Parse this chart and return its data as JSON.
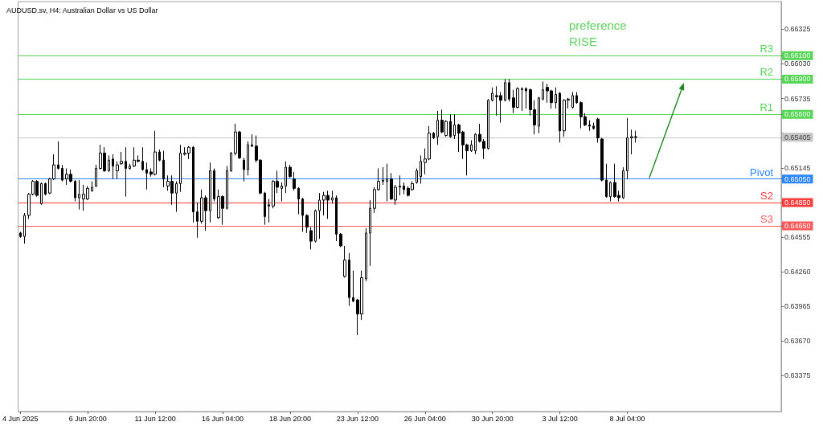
{
  "chart_data": {
    "type": "candlestick",
    "title": "AUDUSD.sv, H4: Australian Dollar vs US Dollar",
    "annotations": [
      "preference",
      "RISE"
    ],
    "categories": [
      "4 Jun 2025",
      null,
      null,
      null,
      null,
      null,
      null,
      null,
      null,
      null,
      null,
      null,
      null,
      null,
      null,
      null,
      "6 Jun 20:00",
      null,
      null,
      null,
      null,
      null,
      null,
      null,
      null,
      null,
      null,
      null,
      null,
      null,
      null,
      null,
      "11 Jun 12:00",
      null,
      null,
      null,
      null,
      null,
      null,
      null,
      null,
      null,
      null,
      null,
      null,
      null,
      null,
      null,
      "16 Jun 04:00",
      null,
      null,
      null,
      null,
      null,
      null,
      null,
      null,
      null,
      null,
      null,
      null,
      null,
      null,
      null,
      "18 Jun 20:00",
      null,
      null,
      null,
      null,
      null,
      null,
      null,
      null,
      null,
      null,
      null,
      null,
      null,
      null,
      null,
      "23 Jun 12:00",
      null,
      null,
      null,
      null,
      null,
      null,
      null,
      null,
      null,
      null,
      null,
      null,
      null,
      null,
      null,
      "26 Jun 04:00",
      null,
      null,
      null,
      null,
      null,
      null,
      null,
      null,
      null,
      null,
      null,
      null,
      null,
      null,
      null,
      "30 Jun 20:00",
      null,
      null,
      null,
      null,
      null,
      null,
      null,
      null,
      null,
      null,
      null,
      null,
      null,
      null,
      null,
      "3 Jul 12:00",
      null,
      null,
      null,
      null,
      null,
      null,
      null,
      null,
      null,
      null,
      null,
      null,
      null,
      null,
      null,
      "8 Jul 04:00",
      null,
      null,
      null,
      null,
      null,
      null,
      null,
      null,
      null,
      null,
      null,
      null,
      null,
      null,
      null,
      null,
      null,
      null,
      null,
      null,
      null,
      null,
      null,
      null,
      null,
      null,
      null,
      null,
      null,
      null,
      null,
      null,
      null,
      null,
      null,
      null
    ],
    "ohlc": [
      [
        0.6459,
        0.646,
        0.6455,
        0.6456
      ],
      [
        0.6456,
        0.6476,
        0.645,
        0.6474
      ],
      [
        0.6474,
        0.6493,
        0.6471,
        0.6492
      ],
      [
        0.6492,
        0.6504,
        0.6491,
        0.6503
      ],
      [
        0.6503,
        0.6504,
        0.649,
        0.6491
      ],
      [
        0.6484,
        0.6502,
        0.6483,
        0.6501
      ],
      [
        0.6501,
        0.6502,
        0.6491,
        0.6492
      ],
      [
        0.6493,
        0.6506,
        0.6492,
        0.6505
      ],
      [
        0.6505,
        0.6526,
        0.6504,
        0.6517
      ],
      [
        0.6517,
        0.6537,
        0.6513,
        0.6514
      ],
      [
        0.6514,
        0.6517,
        0.6503,
        0.6504
      ],
      [
        0.6505,
        0.6514,
        0.65,
        0.6509
      ],
      [
        0.6509,
        0.6513,
        0.6502,
        0.6503
      ],
      [
        0.6503,
        0.6504,
        0.6486,
        0.6489
      ],
      [
        0.6489,
        0.6504,
        0.6479,
        0.6492
      ],
      [
        0.6488,
        0.65,
        0.6478,
        0.6492
      ],
      [
        0.6488,
        0.6499,
        0.6487,
        0.6497
      ],
      [
        0.6495,
        0.6503,
        0.6494,
        0.6498
      ],
      [
        0.6499,
        0.6517,
        0.6498,
        0.6514
      ],
      [
        0.6514,
        0.6534,
        0.6513,
        0.6527
      ],
      [
        0.6527,
        0.6532,
        0.6511,
        0.6512
      ],
      [
        0.6512,
        0.6525,
        0.6511,
        0.6521
      ],
      [
        0.6522,
        0.6526,
        0.6505,
        0.6516
      ],
      [
        0.6512,
        0.652,
        0.6505,
        0.6517
      ],
      [
        0.6518,
        0.6528,
        0.6517,
        0.652
      ],
      [
        0.652,
        0.6532,
        0.649,
        0.6514
      ],
      [
        0.6514,
        0.6518,
        0.6513,
        0.6516
      ],
      [
        0.6516,
        0.6532,
        0.6515,
        0.6521
      ],
      [
        0.6521,
        0.6525,
        0.6519,
        0.652
      ],
      [
        0.652,
        0.6532,
        0.6512,
        0.6513
      ],
      [
        0.6513,
        0.6519,
        0.6496,
        0.651
      ],
      [
        0.6511,
        0.6514,
        0.6507,
        0.6509
      ],
      [
        0.6509,
        0.6546,
        0.6508,
        0.6528
      ],
      [
        0.6528,
        0.653,
        0.652,
        0.6521
      ],
      [
        0.6521,
        0.6529,
        0.6498,
        0.6505
      ],
      [
        0.6499,
        0.6508,
        0.6495,
        0.6503
      ],
      [
        0.6503,
        0.6508,
        0.6483,
        0.6493
      ],
      [
        0.6493,
        0.6503,
        0.6477,
        0.6501
      ],
      [
        0.6501,
        0.6534,
        0.6494,
        0.6527
      ],
      [
        0.6526,
        0.6532,
        0.6525,
        0.6527
      ],
      [
        0.6527,
        0.6533,
        0.6522,
        0.6532
      ],
      [
        0.6532,
        0.6533,
        0.6468,
        0.6477
      ],
      [
        0.6477,
        0.6485,
        0.6455,
        0.6469
      ],
      [
        0.6469,
        0.6496,
        0.6467,
        0.6489
      ],
      [
        0.6489,
        0.6491,
        0.6461,
        0.6478
      ],
      [
        0.6478,
        0.6519,
        0.6468,
        0.6512
      ],
      [
        0.6512,
        0.6514,
        0.6486,
        0.6488
      ],
      [
        0.6472,
        0.6496,
        0.6471,
        0.649
      ],
      [
        0.649,
        0.6491,
        0.6466,
        0.648
      ],
      [
        0.648,
        0.6516,
        0.6479,
        0.6512
      ],
      [
        0.6512,
        0.6528,
        0.6511,
        0.6527
      ],
      [
        0.6527,
        0.6552,
        0.6525,
        0.6545
      ],
      [
        0.6545,
        0.6546,
        0.6522,
        0.6523
      ],
      [
        0.6521,
        0.6523,
        0.6503,
        0.6513
      ],
      [
        0.6513,
        0.6537,
        0.6508,
        0.6534
      ],
      [
        0.6534,
        0.6543,
        0.6532,
        0.6533
      ],
      [
        0.6533,
        0.6542,
        0.6519,
        0.6521
      ],
      [
        0.6521,
        0.6522,
        0.6492,
        0.6493
      ],
      [
        0.6493,
        0.6494,
        0.6466,
        0.6473
      ],
      [
        0.6483,
        0.6488,
        0.6468,
        0.6482
      ],
      [
        0.6482,
        0.6504,
        0.648,
        0.6503
      ],
      [
        0.6503,
        0.6512,
        0.6493,
        0.6498
      ],
      [
        0.6497,
        0.6502,
        0.6486,
        0.6499
      ],
      [
        0.6499,
        0.652,
        0.6493,
        0.6515
      ],
      [
        0.6515,
        0.6517,
        0.6506,
        0.6507
      ],
      [
        0.6505,
        0.6511,
        0.6495,
        0.6497
      ],
      [
        0.6497,
        0.6498,
        0.6475,
        0.6488
      ],
      [
        0.6488,
        0.6489,
        0.646,
        0.6474
      ],
      [
        0.6474,
        0.6475,
        0.6459,
        0.6464
      ],
      [
        0.6461,
        0.6464,
        0.6445,
        0.6452
      ],
      [
        0.6452,
        0.6479,
        0.6451,
        0.6478
      ],
      [
        0.6478,
        0.6493,
        0.6454,
        0.6487
      ],
      [
        0.6487,
        0.6494,
        0.6474,
        0.6491
      ],
      [
        0.6491,
        0.6495,
        0.6471,
        0.6487
      ],
      [
        0.6487,
        0.6495,
        0.6484,
        0.6489
      ],
      [
        0.6489,
        0.6491,
        0.6452,
        0.6458
      ],
      [
        0.6458,
        0.6459,
        0.6447,
        0.6448
      ],
      [
        0.6422,
        0.6448,
        0.6421,
        0.6436
      ],
      [
        0.6436,
        0.6442,
        0.6397,
        0.6404
      ],
      [
        0.6404,
        0.6427,
        0.64,
        0.6401
      ],
      [
        0.6402,
        0.6403,
        0.6372,
        0.639
      ],
      [
        0.639,
        0.6427,
        0.6385,
        0.6421
      ],
      [
        0.642,
        0.6463,
        0.6418,
        0.6459
      ],
      [
        0.6459,
        0.6487,
        0.6431,
        0.648
      ],
      [
        0.648,
        0.6498,
        0.6476,
        0.6496
      ],
      [
        0.6496,
        0.6514,
        0.6495,
        0.6503
      ],
      [
        0.6503,
        0.6515,
        0.65,
        0.6504
      ],
      [
        0.6503,
        0.6518,
        0.6486,
        0.6505
      ],
      [
        0.6505,
        0.651,
        0.6487,
        0.6488
      ],
      [
        0.6487,
        0.65,
        0.6483,
        0.6498
      ],
      [
        0.6498,
        0.6508,
        0.6491,
        0.6499
      ],
      [
        0.6499,
        0.6502,
        0.6492,
        0.6496
      ],
      [
        0.6497,
        0.6499,
        0.649,
        0.6491
      ],
      [
        0.6496,
        0.6503,
        0.6495,
        0.6501
      ],
      [
        0.6502,
        0.6514,
        0.6501,
        0.6512
      ],
      [
        0.6507,
        0.6525,
        0.6501,
        0.652
      ],
      [
        0.6519,
        0.6531,
        0.6509,
        0.6522
      ],
      [
        0.6522,
        0.655,
        0.6521,
        0.6544
      ],
      [
        0.6544,
        0.6545,
        0.6539,
        0.654
      ],
      [
        0.6541,
        0.6563,
        0.6534,
        0.6555
      ],
      [
        0.6555,
        0.6564,
        0.6544,
        0.6545
      ],
      [
        0.6542,
        0.6555,
        0.6541,
        0.6554
      ],
      [
        0.6554,
        0.656,
        0.654,
        0.6541
      ],
      [
        0.6542,
        0.656,
        0.6539,
        0.6551
      ],
      [
        0.6551,
        0.6552,
        0.6528,
        0.6544
      ],
      [
        0.6545,
        0.6546,
        0.6522,
        0.6534
      ],
      [
        0.6534,
        0.6535,
        0.6508,
        0.6529
      ],
      [
        0.6529,
        0.6538,
        0.6528,
        0.6534
      ],
      [
        0.6529,
        0.6544,
        0.6526,
        0.6543
      ],
      [
        0.6543,
        0.6552,
        0.6536,
        0.6537
      ],
      [
        0.6537,
        0.6539,
        0.6522,
        0.6531
      ],
      [
        0.6531,
        0.6573,
        0.653,
        0.6572
      ],
      [
        0.6572,
        0.6583,
        0.6571,
        0.6578
      ],
      [
        0.6576,
        0.6584,
        0.6559,
        0.6575
      ],
      [
        0.6576,
        0.6579,
        0.6553,
        0.6572
      ],
      [
        0.6572,
        0.659,
        0.6571,
        0.6587
      ],
      [
        0.6587,
        0.659,
        0.6571,
        0.6573
      ],
      [
        0.6574,
        0.6581,
        0.6561,
        0.6566
      ],
      [
        0.6566,
        0.6583,
        0.6565,
        0.6582
      ],
      [
        0.6581,
        0.6583,
        0.6563,
        0.6582
      ],
      [
        0.6582,
        0.6583,
        0.6565,
        0.658
      ],
      [
        0.6581,
        0.6582,
        0.6559,
        0.6564
      ],
      [
        0.6564,
        0.6572,
        0.6543,
        0.6551
      ],
      [
        0.655,
        0.6575,
        0.6544,
        0.6574
      ],
      [
        0.6573,
        0.6588,
        0.6572,
        0.6581
      ],
      [
        0.6583,
        0.6586,
        0.657,
        0.658
      ],
      [
        0.658,
        0.6581,
        0.6565,
        0.657
      ],
      [
        0.657,
        0.6583,
        0.6565,
        0.6577
      ],
      [
        0.6578,
        0.6579,
        0.6536,
        0.6546
      ],
      [
        0.6546,
        0.6573,
        0.6541,
        0.6572
      ],
      [
        0.6572,
        0.6574,
        0.6565,
        0.6573
      ],
      [
        0.6566,
        0.6579,
        0.6565,
        0.6576
      ],
      [
        0.6576,
        0.6579,
        0.6569,
        0.657
      ],
      [
        0.657,
        0.6571,
        0.6548,
        0.6558
      ],
      [
        0.6558,
        0.6561,
        0.655,
        0.6551
      ],
      [
        0.6551,
        0.6555,
        0.6546,
        0.655
      ],
      [
        0.655,
        0.6553,
        0.6547,
        0.6548
      ],
      [
        0.6556,
        0.6557,
        0.6536,
        0.654
      ],
      [
        0.6539,
        0.654,
        0.6503,
        0.6504
      ],
      [
        0.6504,
        0.6518,
        0.6489,
        0.649
      ],
      [
        0.649,
        0.6503,
        0.6486,
        0.6502
      ],
      [
        0.6502,
        0.6518,
        0.6489,
        0.649
      ],
      [
        0.6491,
        0.6495,
        0.6486,
        0.6489
      ],
      [
        0.6489,
        0.6515,
        0.6488,
        0.6512
      ],
      [
        0.6512,
        0.6557,
        0.6505,
        0.654
      ],
      [
        0.654,
        0.6547,
        0.6526,
        0.6541
      ],
      [
        0.6541,
        0.6546,
        0.6536,
        0.65405
      ],
      null,
      null,
      null,
      null,
      null,
      null,
      null,
      null,
      null,
      null,
      null,
      null,
      null,
      null,
      null,
      null,
      null,
      null,
      null,
      null,
      null,
      null,
      null,
      null,
      null,
      null,
      null,
      null,
      null,
      null,
      null,
      null,
      null,
      null
    ],
    "color": "#000000",
    "ylim": [
      0.6307,
      0.6656
    ],
    "yticks": [
      0.66325,
      {
        "value": 0.661,
        "label": "0.66100"
      },
      {
        "value": 0.6603,
        "label": "0.66030"
      },
      {
        "value": 0.659,
        "label": "0.65900"
      },
      0.65735,
      {
        "value": 0.656,
        "label": "0.65600"
      },
      {
        "value": 0.6544,
        "label": null
      },
      0.65405,
      0.65145,
      {
        "value": 0.6505,
        "label": "0.65050"
      },
      {
        "value": 0.6485,
        "label": "0.64850"
      },
      {
        "value": 0.6465,
        "label": "0.64650"
      },
      0.64555,
      {
        "value": 0.6426,
        "label": "0.64260"
      },
      0.63965,
      {
        "value": 0.6367,
        "label": "0.63670"
      },
      0.63375
    ],
    "ref_lines": [
      {
        "axis": "y",
        "value": 0.661,
        "label": "R3",
        "color": "#55d655"
      },
      {
        "axis": "y",
        "value": 0.659,
        "label": "R2",
        "color": "#55d655"
      },
      {
        "axis": "y",
        "value": 0.656,
        "label": "R1",
        "color": "#55d655"
      },
      {
        "axis": "y",
        "value": 0.65405,
        "color": "#c4c4c4"
      },
      {
        "axis": "y",
        "value": 0.6505,
        "label": "Pivot",
        "color": "#2e86ff"
      },
      {
        "axis": "y",
        "value": 0.6485,
        "label": "S2",
        "color": "#ff3b3b"
      },
      {
        "axis": "y",
        "value": 0.6465,
        "label": "S3",
        "color": "#ff5a5a"
      }
    ]
  }
}
